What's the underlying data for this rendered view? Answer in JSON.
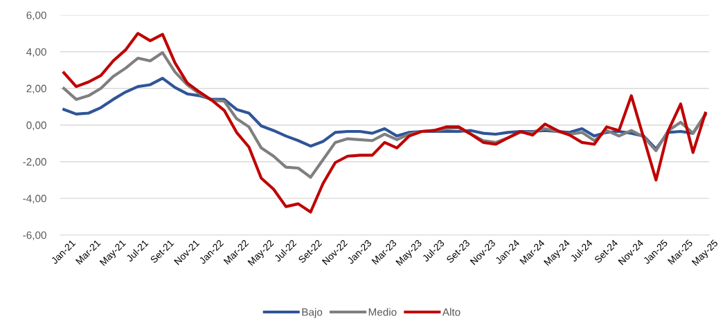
{
  "chart_data": {
    "type": "line",
    "categories": [
      "Jan-21",
      null,
      "Mar-21",
      null,
      "May-21",
      null,
      "Jul-21",
      null,
      "Set-21",
      null,
      "Nov-21",
      null,
      "Jan-22",
      null,
      "Mar-22",
      null,
      "May-22",
      null,
      "Jul-22",
      null,
      "Set-22",
      null,
      "Nov-22",
      null,
      "Jan-23",
      null,
      "Mar-23",
      null,
      "May-23",
      null,
      "Jul-23",
      null,
      "Set-23",
      null,
      "Nov-23",
      null,
      "Jan-24",
      null,
      "Mar-24",
      null,
      "May-24",
      null,
      "Jul-24",
      null,
      "Set-24",
      null,
      "Nov-24",
      null,
      "Jan-25",
      null,
      "Mar-25",
      null,
      "May-25"
    ],
    "series": [
      {
        "name": "Bajo",
        "color": "#2f5597",
        "values": [
          0.85,
          0.6,
          0.65,
          0.95,
          1.4,
          1.8,
          2.1,
          2.2,
          2.55,
          2.05,
          1.7,
          1.6,
          1.4,
          1.4,
          0.85,
          0.65,
          -0.05,
          -0.3,
          -0.6,
          -0.85,
          -1.15,
          -0.9,
          -0.4,
          -0.35,
          -0.35,
          -0.45,
          -0.2,
          -0.6,
          -0.4,
          -0.35,
          -0.35,
          -0.35,
          -0.35,
          -0.3,
          -0.45,
          -0.5,
          -0.4,
          -0.35,
          -0.35,
          -0.3,
          -0.35,
          -0.4,
          -0.2,
          -0.6,
          -0.4,
          -0.35,
          -0.45,
          -0.6,
          -1.3,
          -0.4,
          -0.35,
          -0.45,
          0.55
        ]
      },
      {
        "name": "Medio",
        "color": "#7f7f7f",
        "values": [
          2.0,
          1.4,
          1.6,
          2.0,
          2.65,
          3.1,
          3.65,
          3.5,
          3.95,
          2.9,
          2.2,
          1.7,
          1.35,
          1.3,
          0.35,
          -0.1,
          -1.25,
          -1.7,
          -2.3,
          -2.35,
          -2.85,
          -1.9,
          -0.95,
          -0.75,
          -0.8,
          -0.85,
          -0.5,
          -0.8,
          -0.5,
          -0.35,
          -0.3,
          -0.2,
          -0.15,
          -0.5,
          -0.85,
          -0.95,
          -0.7,
          -0.4,
          -0.4,
          -0.2,
          -0.35,
          -0.5,
          -0.4,
          -0.85,
          -0.3,
          -0.6,
          -0.3,
          -0.65,
          -1.4,
          -0.3,
          0.15,
          -0.45,
          0.6
        ]
      },
      {
        "name": "Alto",
        "color": "#c00000",
        "values": [
          2.85,
          2.1,
          2.35,
          2.7,
          3.5,
          4.1,
          5.0,
          4.6,
          4.95,
          3.4,
          2.3,
          1.8,
          1.35,
          0.8,
          -0.4,
          -1.2,
          -2.9,
          -3.5,
          -4.45,
          -4.3,
          -4.75,
          -3.2,
          -2.05,
          -1.7,
          -1.65,
          -1.65,
          -0.95,
          -1.25,
          -0.6,
          -0.35,
          -0.3,
          -0.1,
          -0.1,
          -0.5,
          -0.95,
          -1.05,
          -0.7,
          -0.35,
          -0.55,
          0.05,
          -0.3,
          -0.55,
          -0.95,
          -1.05,
          -0.1,
          -0.3,
          1.6,
          -0.7,
          -3.0,
          -0.3,
          1.15,
          -1.5,
          0.65
        ]
      }
    ],
    "ylim": [
      -6,
      6
    ],
    "yticks": [
      {
        "value": -6,
        "label": "-6,00"
      },
      {
        "value": -4,
        "label": "-4,00"
      },
      {
        "value": -2,
        "label": "-2,00"
      },
      {
        "value": 0,
        "label": "0,00"
      },
      {
        "value": 2,
        "label": "2,00"
      },
      {
        "value": 4,
        "label": "4,00"
      },
      {
        "value": 6,
        "label": "6,00"
      }
    ],
    "grid": "y",
    "legend": "bottom",
    "marker": "none",
    "line_style": "solid"
  }
}
